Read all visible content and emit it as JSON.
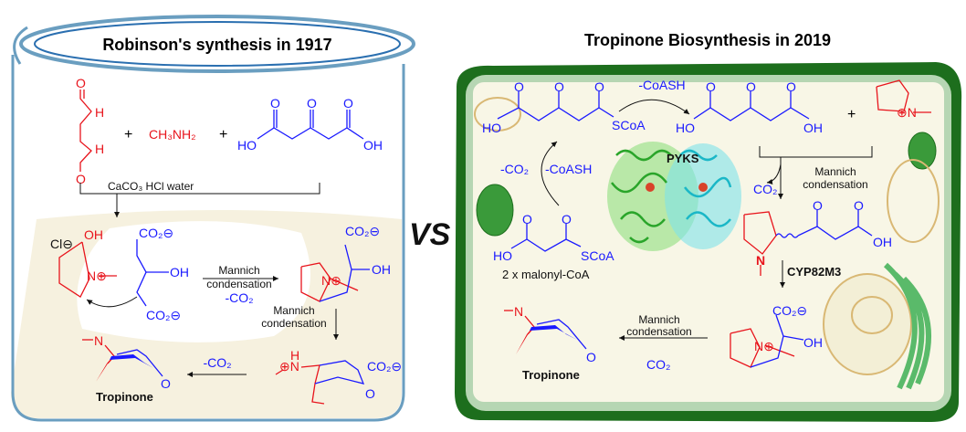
{
  "left": {
    "title": "Robinson's synthesis in 1917",
    "plus": "+",
    "methylamine": "CH₃NH₂",
    "O": "O",
    "H": "H",
    "HO": "HO",
    "OH": "OH",
    "reagents": "CaCO₃  HCl   water",
    "chloride": "Cl⊖",
    "n_plus": "N⊕",
    "co2_minus": "CO₂⊖",
    "mannich": "Mannich",
    "condensation": "condensation",
    "minus_co2": "-CO₂",
    "n": "N",
    "h_n_plus": "⊕N",
    "product": "Tropinone"
  },
  "vs": "VS",
  "right": {
    "title": "Tropinone Biosynthesis in 2019",
    "O": "O",
    "HO": "HO",
    "OH": "OH",
    "scoa": "SCoA",
    "minus_coash": "-CoASH",
    "minus_co2": "-CO₂",
    "plus": "+",
    "n_plus": "⊕N",
    "enzyme": "PYKS",
    "co2": "CO₂",
    "mannich": "Mannich",
    "condensation": "condensation",
    "substrate_label": "2 x malonyl-CoA",
    "n": "N",
    "cyp": "CYP82M3",
    "co2_minus": "CO₂⊖",
    "n_plus2": "N⊕",
    "product": "Tropinone"
  },
  "colors": {
    "reagent_red": "#e8141c",
    "reagent_blue": "#1a1aff",
    "cell_wall": "#1d6e1d",
    "beaker": "#6a9ec0"
  }
}
